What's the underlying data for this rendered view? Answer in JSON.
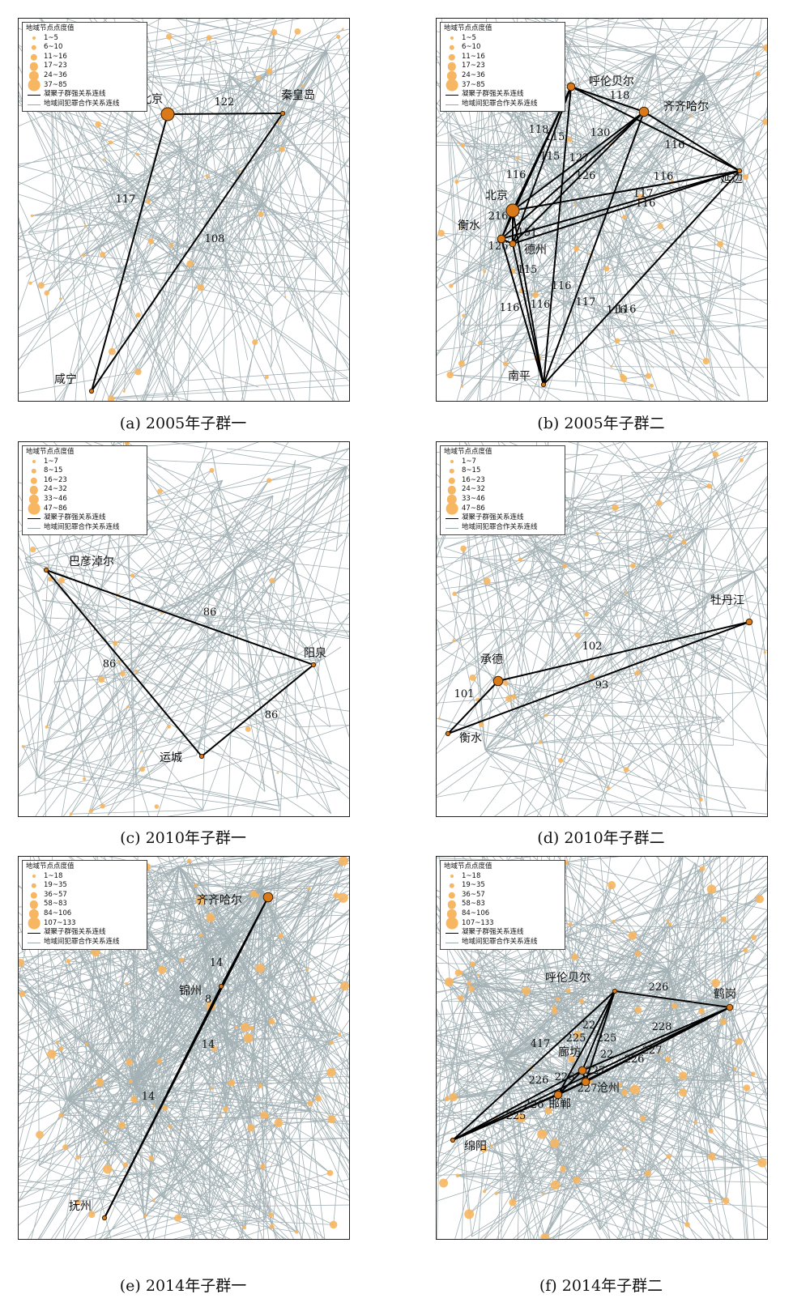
{
  "panels": [
    {
      "caption": "(a) 2005年子群一",
      "legend": {
        "title": "地域节点点度值",
        "classes": [
          "1~5",
          "6~10",
          "11~16",
          "17~23",
          "24~36",
          "37~85"
        ],
        "strong_line": "凝聚子群强关系连线",
        "weak_line": "地域间犯罪合作关系连线"
      },
      "cities": [
        {
          "name": "北京",
          "degree_class": 5,
          "highlight": true
        },
        {
          "name": "秦皇岛",
          "degree_class": 0,
          "highlight": true
        },
        {
          "name": "咸宁",
          "degree_class": 0,
          "highlight": true
        }
      ],
      "strong_links": [
        {
          "from": "北京",
          "to": "秦皇岛",
          "weight": "122"
        },
        {
          "from": "北京",
          "to": "咸宁",
          "weight": "117"
        },
        {
          "from": "秦皇岛",
          "to": "咸宁",
          "weight": "108"
        }
      ]
    },
    {
      "caption": "(b) 2005年子群二",
      "legend": {
        "title": "地域节点点度值",
        "classes": [
          "1~5",
          "6~10",
          "11~16",
          "17~23",
          "24~36",
          "37~85"
        ],
        "strong_line": "凝聚子群强关系连线",
        "weak_line": "地域间犯罪合作关系连线"
      },
      "cities": [
        {
          "name": "呼伦贝尔",
          "degree_class": 2,
          "highlight": true
        },
        {
          "name": "齐齐哈尔",
          "degree_class": 3,
          "highlight": true
        },
        {
          "name": "延边",
          "degree_class": 0,
          "highlight": true
        },
        {
          "name": "北京",
          "degree_class": 5,
          "highlight": true
        },
        {
          "name": "衡水",
          "degree_class": 2,
          "highlight": true
        },
        {
          "name": "德州",
          "degree_class": 1,
          "highlight": true
        },
        {
          "name": "南平",
          "degree_class": 0,
          "highlight": true
        }
      ],
      "strong_links": [
        {
          "from": "呼伦贝尔",
          "to": "齐齐哈尔",
          "weight": "118"
        },
        {
          "from": "呼伦贝尔",
          "to": "北京",
          "weight": "118"
        },
        {
          "from": "呼伦贝尔",
          "to": "衡水",
          "weight": "116"
        },
        {
          "from": "呼伦贝尔",
          "to": "德州",
          "weight": "115"
        },
        {
          "from": "呼伦贝尔",
          "to": "延边",
          "weight": ""
        },
        {
          "from": "呼伦贝尔",
          "to": "南平",
          "weight": "116"
        },
        {
          "from": "齐齐哈尔",
          "to": "北京",
          "weight": "130"
        },
        {
          "from": "齐齐哈尔",
          "to": "衡水",
          "weight": "127"
        },
        {
          "from": "齐齐哈尔",
          "to": "德州",
          "weight": "126"
        },
        {
          "from": "齐齐哈尔",
          "to": "延边",
          "weight": "116"
        },
        {
          "from": "齐齐哈尔",
          "to": "南平",
          "weight": "117"
        },
        {
          "from": "延边",
          "to": "北京",
          "weight": "116"
        },
        {
          "from": "延边",
          "to": "衡水",
          "weight": "117"
        },
        {
          "from": "延边",
          "to": "德州",
          "weight": "116"
        },
        {
          "from": "延边",
          "to": "南平",
          "weight": "116"
        },
        {
          "from": "北京",
          "to": "衡水",
          "weight": "216"
        },
        {
          "from": "北京",
          "to": "德州",
          "weight": "151"
        },
        {
          "from": "北京",
          "to": "南平",
          "weight": "116"
        },
        {
          "from": "衡水",
          "to": "德州",
          "weight": "126"
        },
        {
          "from": "衡水",
          "to": "南平",
          "weight": "116"
        },
        {
          "from": "德州",
          "to": "南平",
          "weight": "115"
        }
      ],
      "extra_labels": [
        "115",
        "116"
      ]
    },
    {
      "caption": "(c) 2010年子群一",
      "legend": {
        "title": "地域节点点度值",
        "classes": [
          "1~7",
          "8~15",
          "16~23",
          "24~32",
          "33~46",
          "47~86"
        ],
        "strong_line": "凝聚子群强关系连线",
        "weak_line": "地域间犯罪合作关系连线"
      },
      "cities": [
        {
          "name": "巴彦淖尔",
          "degree_class": 0,
          "highlight": true
        },
        {
          "name": "阳泉",
          "degree_class": 0,
          "highlight": true
        },
        {
          "name": "运城",
          "degree_class": 0,
          "highlight": true
        }
      ],
      "strong_links": [
        {
          "from": "巴彦淖尔",
          "to": "阳泉",
          "weight": "86"
        },
        {
          "from": "巴彦淖尔",
          "to": "运城",
          "weight": "86"
        },
        {
          "from": "运城",
          "to": "阳泉",
          "weight": "86"
        }
      ]
    },
    {
      "caption": "(d) 2010年子群二",
      "legend": {
        "title": "地域节点点度值",
        "classes": [
          "1~7",
          "8~15",
          "16~23",
          "24~32",
          "33~46",
          "47~86"
        ],
        "strong_line": "凝聚子群强关系连线",
        "weak_line": "地域间犯罪合作关系连线"
      },
      "cities": [
        {
          "name": "牡丹江",
          "degree_class": 1,
          "highlight": true
        },
        {
          "name": "承德",
          "degree_class": 3,
          "highlight": true
        },
        {
          "name": "衡水",
          "degree_class": 0,
          "highlight": true
        }
      ],
      "strong_links": [
        {
          "from": "承德",
          "to": "牡丹江",
          "weight": "102"
        },
        {
          "from": "衡水",
          "to": "牡丹江",
          "weight": "93"
        },
        {
          "from": "衡水",
          "to": "承德",
          "weight": "101"
        }
      ]
    },
    {
      "caption": "(e) 2014年子群一",
      "legend": {
        "title": "地域节点点度值",
        "classes": [
          "1~18",
          "19~35",
          "36~57",
          "58~83",
          "84~106",
          "107~133"
        ],
        "strong_line": "凝聚子群强关系连线",
        "weak_line": "地域间犯罪合作关系连线"
      },
      "cities": [
        {
          "name": "齐齐哈尔",
          "degree_class": 3,
          "highlight": true
        },
        {
          "name": "锦州",
          "degree_class": 0,
          "highlight": true
        },
        {
          "name": "抚州",
          "degree_class": 0,
          "highlight": true
        }
      ],
      "strong_links": [
        {
          "from": "齐齐哈尔",
          "to": "锦州",
          "weight": "14"
        },
        {
          "from": "齐齐哈尔",
          "to": "抚州",
          "weight": "14"
        },
        {
          "from": "锦州",
          "to": "抚州",
          "weight": "14"
        }
      ],
      "extra_labels": [
        "8"
      ]
    },
    {
      "caption": "(f) 2014年子群二",
      "legend": {
        "title": "地域节点点度值",
        "classes": [
          "1~18",
          "19~35",
          "36~57",
          "58~83",
          "84~106",
          "107~133"
        ],
        "strong_line": "凝聚子群强关系连线",
        "weak_line": "地域间犯罪合作关系连线"
      },
      "cities": [
        {
          "name": "呼伦贝尔",
          "degree_class": 0,
          "highlight": true
        },
        {
          "name": "鹤岗",
          "degree_class": 1,
          "highlight": true
        },
        {
          "name": "廊坊",
          "degree_class": 2,
          "highlight": true
        },
        {
          "name": "沧州",
          "degree_class": 2,
          "highlight": true
        },
        {
          "name": "邯郸",
          "degree_class": 2,
          "highlight": true
        },
        {
          "name": "绵阳",
          "degree_class": 0,
          "highlight": true
        }
      ],
      "strong_links": [
        {
          "from": "呼伦贝尔",
          "to": "鹤岗",
          "weight": "226"
        },
        {
          "from": "呼伦贝尔",
          "to": "绵阳",
          "weight": "417"
        },
        {
          "from": "呼伦贝尔",
          "to": "廊坊",
          "weight": "225"
        },
        {
          "from": "呼伦贝尔",
          "to": "沧州",
          "weight": "225"
        },
        {
          "from": "呼伦贝尔",
          "to": "邯郸",
          "weight": "22"
        },
        {
          "from": "鹤岗",
          "to": "廊坊",
          "weight": "228"
        },
        {
          "from": "鹤岗",
          "to": "沧州",
          "weight": "227"
        },
        {
          "from": "鹤岗",
          "to": "邯郸",
          "weight": "226"
        },
        {
          "from": "鹤岗",
          "to": "绵阳",
          "weight": ""
        },
        {
          "from": "廊坊",
          "to": "沧州",
          "weight": "227"
        },
        {
          "from": "廊坊",
          "to": "邯郸",
          "weight": "226"
        },
        {
          "from": "廊坊",
          "to": "绵阳",
          "weight": "226"
        },
        {
          "from": "沧州",
          "to": "邯郸",
          "weight": "227"
        },
        {
          "from": "沧州",
          "to": "绵阳",
          "weight": "226"
        },
        {
          "from": "邯郸",
          "to": "绵阳",
          "weight": "225"
        }
      ],
      "extra_labels": [
        "22"
      ]
    }
  ],
  "colors": {
    "background_line": "#a3b1b5",
    "strong_line": "#000000",
    "node_fill": "#f6b662",
    "highlight_node_fill": "#d9791a",
    "highlight_node_stroke": "#3a2000"
  }
}
